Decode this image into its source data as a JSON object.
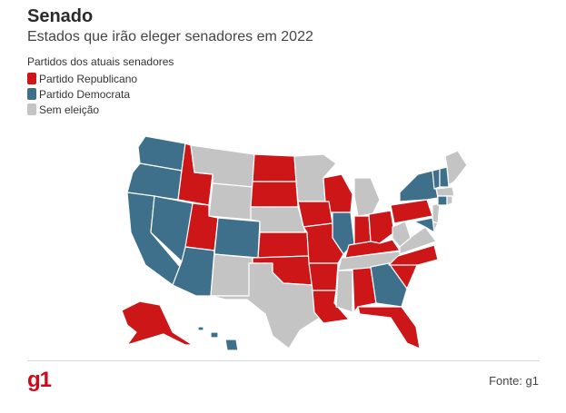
{
  "header": {
    "title": "Senado",
    "subtitle": "Estados que irão eleger senadores em 2022"
  },
  "legend": {
    "title": "Partidos dos atuais senadores",
    "items": [
      {
        "key": "rep",
        "label": "Partido Republicano",
        "color": "#cc1617"
      },
      {
        "key": "dem",
        "label": "Partido Democrata",
        "color": "#3e708c"
      },
      {
        "key": "none",
        "label": "Sem eleição",
        "color": "#c4c4c4"
      }
    ]
  },
  "map": {
    "states": {
      "WA": "dem",
      "OR": "dem",
      "CA": "dem",
      "NV": "dem",
      "AZ": "dem",
      "CO": "dem",
      "IL": "dem",
      "GA": "dem",
      "MD": "dem",
      "NY": "dem",
      "VT": "dem",
      "NH": "dem",
      "CT": "dem",
      "HI": "dem",
      "ID": "rep",
      "UT": "rep",
      "ND": "rep",
      "SD": "rep",
      "KS": "rep",
      "OK": "rep",
      "MO": "rep",
      "IA": "rep",
      "WI": "rep",
      "AR": "rep",
      "LA": "rep",
      "AL": "rep",
      "FL": "rep",
      "SC": "rep",
      "NC": "rep",
      "KY": "rep",
      "IN": "rep",
      "OH": "rep",
      "PA": "rep",
      "AK": "rep",
      "MT": "none",
      "WY": "none",
      "NE": "none",
      "MN": "none",
      "NM": "none",
      "TX": "none",
      "MI": "none",
      "TN": "none",
      "MS": "none",
      "WV": "none",
      "VA": "none",
      "ME": "none",
      "MA": "none",
      "NJ": "none",
      "DE": "none",
      "RI": "none"
    }
  },
  "footer": {
    "logo": "g1",
    "source": "Fonte: g1",
    "logo_color": "#d0091a"
  }
}
